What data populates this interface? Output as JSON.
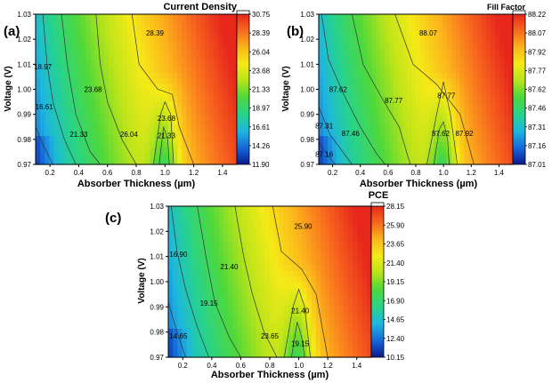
{
  "figure": "contour-maps",
  "chart_data": [
    {
      "type": "heatmap",
      "panel_label": "(a)",
      "title": "Current Density",
      "xlabel": "Absorber Thickness (µm)",
      "ylabel": "Voltage (V)",
      "x_ticks": [
        "0.2",
        "0.4",
        "0.6",
        "0.8",
        "1.0",
        "1.2",
        "1.4"
      ],
      "x_tick_values": [
        0.2,
        0.4,
        0.6,
        0.8,
        1.0,
        1.2,
        1.4
      ],
      "y_ticks": [
        "0.97",
        "0.98",
        "0.99",
        "1.00",
        "1.01",
        "1.02",
        "1.03"
      ],
      "y_tick_values": [
        0.97,
        0.98,
        0.99,
        1.0,
        1.01,
        1.02,
        1.03
      ],
      "xlim": [
        0.1,
        1.5
      ],
      "ylim": [
        0.97,
        1.03
      ],
      "colorbar_ticks": [
        "11.90",
        "14.26",
        "16.61",
        "18.97",
        "21.33",
        "23.68",
        "26.04",
        "28.39",
        "30.75"
      ],
      "colorbar_range": [
        11.9,
        30.75
      ],
      "contour_labels": [
        {
          "text": "18.97",
          "x": 0.15,
          "y": 1.009
        },
        {
          "text": "16.61",
          "x": 0.16,
          "y": 0.993
        },
        {
          "text": "23.68",
          "x": 0.5,
          "y": 1.0
        },
        {
          "text": "21.33",
          "x": 0.4,
          "y": 0.982
        },
        {
          "text": "26.04",
          "x": 0.75,
          "y": 0.982
        },
        {
          "text": "23.68",
          "x": 1.01,
          "y": 0.9885
        },
        {
          "text": "21.33",
          "x": 1.01,
          "y": 0.9815
        },
        {
          "text": "28.39",
          "x": 0.93,
          "y": 1.0225
        }
      ],
      "contour_lines": [
        [
          [
            0.1,
            0.985
          ],
          [
            0.15,
            0.978
          ],
          [
            0.22,
            0.97
          ]
        ],
        [
          [
            0.15,
            1.03
          ],
          [
            0.18,
            1.01
          ],
          [
            0.22,
            0.995
          ],
          [
            0.3,
            0.98
          ],
          [
            0.38,
            0.97
          ]
        ],
        [
          [
            0.28,
            1.03
          ],
          [
            0.32,
            1.01
          ],
          [
            0.38,
            0.99
          ],
          [
            0.48,
            0.975
          ],
          [
            0.55,
            0.97
          ]
        ],
        [
          [
            0.52,
            1.03
          ],
          [
            0.55,
            1.01
          ],
          [
            0.6,
            0.995
          ],
          [
            0.7,
            0.98
          ],
          [
            0.8,
            0.97
          ]
        ],
        [
          [
            0.92,
            0.97
          ],
          [
            0.97,
            0.99
          ],
          [
            1.0,
            0.995
          ],
          [
            1.04,
            0.99
          ],
          [
            1.06,
            0.97
          ]
        ],
        [
          [
            0.96,
            0.97
          ],
          [
            0.99,
            0.985
          ],
          [
            1.02,
            0.98
          ],
          [
            1.03,
            0.97
          ]
        ],
        [
          [
            0.77,
            1.03
          ],
          [
            0.82,
            1.01
          ],
          [
            0.95,
            1.0
          ],
          [
            1.05,
            0.998
          ],
          [
            1.1,
            0.985
          ],
          [
            1.2,
            0.97
          ]
        ]
      ]
    },
    {
      "type": "heatmap",
      "panel_label": "(b)",
      "title": "Fill Factor",
      "xlabel": "Absorber Thickness (µm)",
      "ylabel": "Voltage (V)",
      "x_ticks": [
        "0.2",
        "0.4",
        "0.6",
        "0.8",
        "1.0",
        "1.2",
        "1.4"
      ],
      "x_tick_values": [
        0.2,
        0.4,
        0.6,
        0.8,
        1.0,
        1.2,
        1.4
      ],
      "y_ticks": [
        "0.97",
        "0.98",
        "0.99",
        "1.00",
        "1.01",
        "1.02",
        "1.03"
      ],
      "y_tick_values": [
        0.97,
        0.98,
        0.99,
        1.0,
        1.01,
        1.02,
        1.03
      ],
      "xlim": [
        0.1,
        1.5
      ],
      "ylim": [
        0.97,
        1.03
      ],
      "colorbar_ticks": [
        "87.01",
        "87.16",
        "87.31",
        "87.46",
        "87.62",
        "87.77",
        "87.92",
        "88.07",
        "88.22"
      ],
      "colorbar_range": [
        87.01,
        88.22
      ],
      "contour_labels": [
        {
          "text": "88.07",
          "x": 0.89,
          "y": 1.0225
        },
        {
          "text": "87.62",
          "x": 0.24,
          "y": 1.0
        },
        {
          "text": "87.77",
          "x": 0.64,
          "y": 0.9955
        },
        {
          "text": "87.77",
          "x": 1.02,
          "y": 0.9975
        },
        {
          "text": "87.31",
          "x": 0.14,
          "y": 0.9855
        },
        {
          "text": "87.46",
          "x": 0.33,
          "y": 0.9825
        },
        {
          "text": "87.62",
          "x": 0.98,
          "y": 0.9825
        },
        {
          "text": "87.92",
          "x": 1.15,
          "y": 0.9825
        },
        {
          "text": "87.16",
          "x": 0.14,
          "y": 0.974
        }
      ],
      "contour_lines": [
        [
          [
            0.1,
            0.979
          ],
          [
            0.16,
            0.974
          ],
          [
            0.22,
            0.97
          ]
        ],
        [
          [
            0.1,
            0.993
          ],
          [
            0.18,
            0.982
          ],
          [
            0.26,
            0.976
          ],
          [
            0.34,
            0.97
          ]
        ],
        [
          [
            0.12,
            1.03
          ],
          [
            0.17,
            1.012
          ],
          [
            0.28,
            0.998
          ],
          [
            0.4,
            0.985
          ],
          [
            0.52,
            0.974
          ],
          [
            0.58,
            0.97
          ]
        ],
        [
          [
            0.34,
            1.03
          ],
          [
            0.42,
            1.01
          ],
          [
            0.55,
            0.997
          ],
          [
            0.68,
            0.985
          ],
          [
            0.76,
            0.97
          ]
        ],
        [
          [
            0.88,
            0.97
          ],
          [
            0.95,
            0.99
          ],
          [
            1.0,
            1.003
          ],
          [
            1.05,
            0.99
          ],
          [
            1.1,
            0.97
          ]
        ],
        [
          [
            0.65,
            1.03
          ],
          [
            0.78,
            1.01
          ],
          [
            0.95,
            1.002
          ],
          [
            1.12,
            0.99
          ],
          [
            1.22,
            0.97
          ]
        ],
        [
          [
            0.93,
            0.97
          ],
          [
            0.97,
            0.984
          ],
          [
            1.0,
            0.987
          ],
          [
            1.03,
            0.98
          ],
          [
            1.04,
            0.97
          ]
        ]
      ]
    },
    {
      "type": "heatmap",
      "panel_label": "(c)",
      "title": "PCE",
      "xlabel": "Absorber Thickness (µm)",
      "ylabel": "Voltage (V)",
      "x_ticks": [
        "0.2",
        "0.4",
        "0.6",
        "0.8",
        "1.0",
        "1.2",
        "1.4"
      ],
      "x_tick_values": [
        0.2,
        0.4,
        0.6,
        0.8,
        1.0,
        1.2,
        1.4
      ],
      "y_ticks": [
        "0.97",
        "0.98",
        "0.99",
        "1.00",
        "1.01",
        "1.02",
        "1.03"
      ],
      "y_tick_values": [
        0.97,
        0.98,
        0.99,
        1.0,
        1.01,
        1.02,
        1.03
      ],
      "xlim": [
        0.1,
        1.5
      ],
      "ylim": [
        0.97,
        1.03
      ],
      "colorbar_ticks": [
        "10.15",
        "12.40",
        "14.65",
        "16.90",
        "19.15",
        "21.40",
        "23.65",
        "25.90",
        "28.15"
      ],
      "colorbar_range": [
        10.15,
        28.15
      ],
      "contour_labels": [
        {
          "text": "16.90",
          "x": 0.17,
          "y": 1.011
        },
        {
          "text": "21.40",
          "x": 0.52,
          "y": 1.006
        },
        {
          "text": "25.90",
          "x": 1.03,
          "y": 1.022
        },
        {
          "text": "19.15",
          "x": 0.38,
          "y": 0.9915
        },
        {
          "text": "14.65",
          "x": 0.17,
          "y": 0.9785
        },
        {
          "text": "21.40",
          "x": 1.01,
          "y": 0.9885
        },
        {
          "text": "23.65",
          "x": 0.8,
          "y": 0.9785
        },
        {
          "text": "19.15",
          "x": 1.01,
          "y": 0.9755
        }
      ],
      "contour_lines": [
        [
          [
            0.1,
            0.992
          ],
          [
            0.15,
            0.982
          ],
          [
            0.22,
            0.97
          ]
        ],
        [
          [
            0.12,
            1.03
          ],
          [
            0.16,
            1.012
          ],
          [
            0.22,
            0.997
          ],
          [
            0.3,
            0.982
          ],
          [
            0.38,
            0.97
          ]
        ],
        [
          [
            0.3,
            1.03
          ],
          [
            0.36,
            1.01
          ],
          [
            0.42,
            0.992
          ],
          [
            0.52,
            0.978
          ],
          [
            0.6,
            0.97
          ]
        ],
        [
          [
            0.56,
            1.03
          ],
          [
            0.62,
            1.01
          ],
          [
            0.68,
            0.995
          ],
          [
            0.76,
            0.98
          ],
          [
            0.85,
            0.97
          ]
        ],
        [
          [
            0.9,
            0.97
          ],
          [
            0.96,
            0.99
          ],
          [
            1.0,
            0.997
          ],
          [
            1.04,
            0.99
          ],
          [
            1.08,
            0.97
          ]
        ],
        [
          [
            0.95,
            0.97
          ],
          [
            0.99,
            0.984
          ],
          [
            1.02,
            0.978
          ],
          [
            1.04,
            0.97
          ]
        ],
        [
          [
            0.82,
            1.03
          ],
          [
            0.88,
            1.012
          ],
          [
            1.02,
            1.005
          ],
          [
            1.12,
            0.995
          ],
          [
            1.2,
            0.97
          ]
        ]
      ]
    }
  ]
}
